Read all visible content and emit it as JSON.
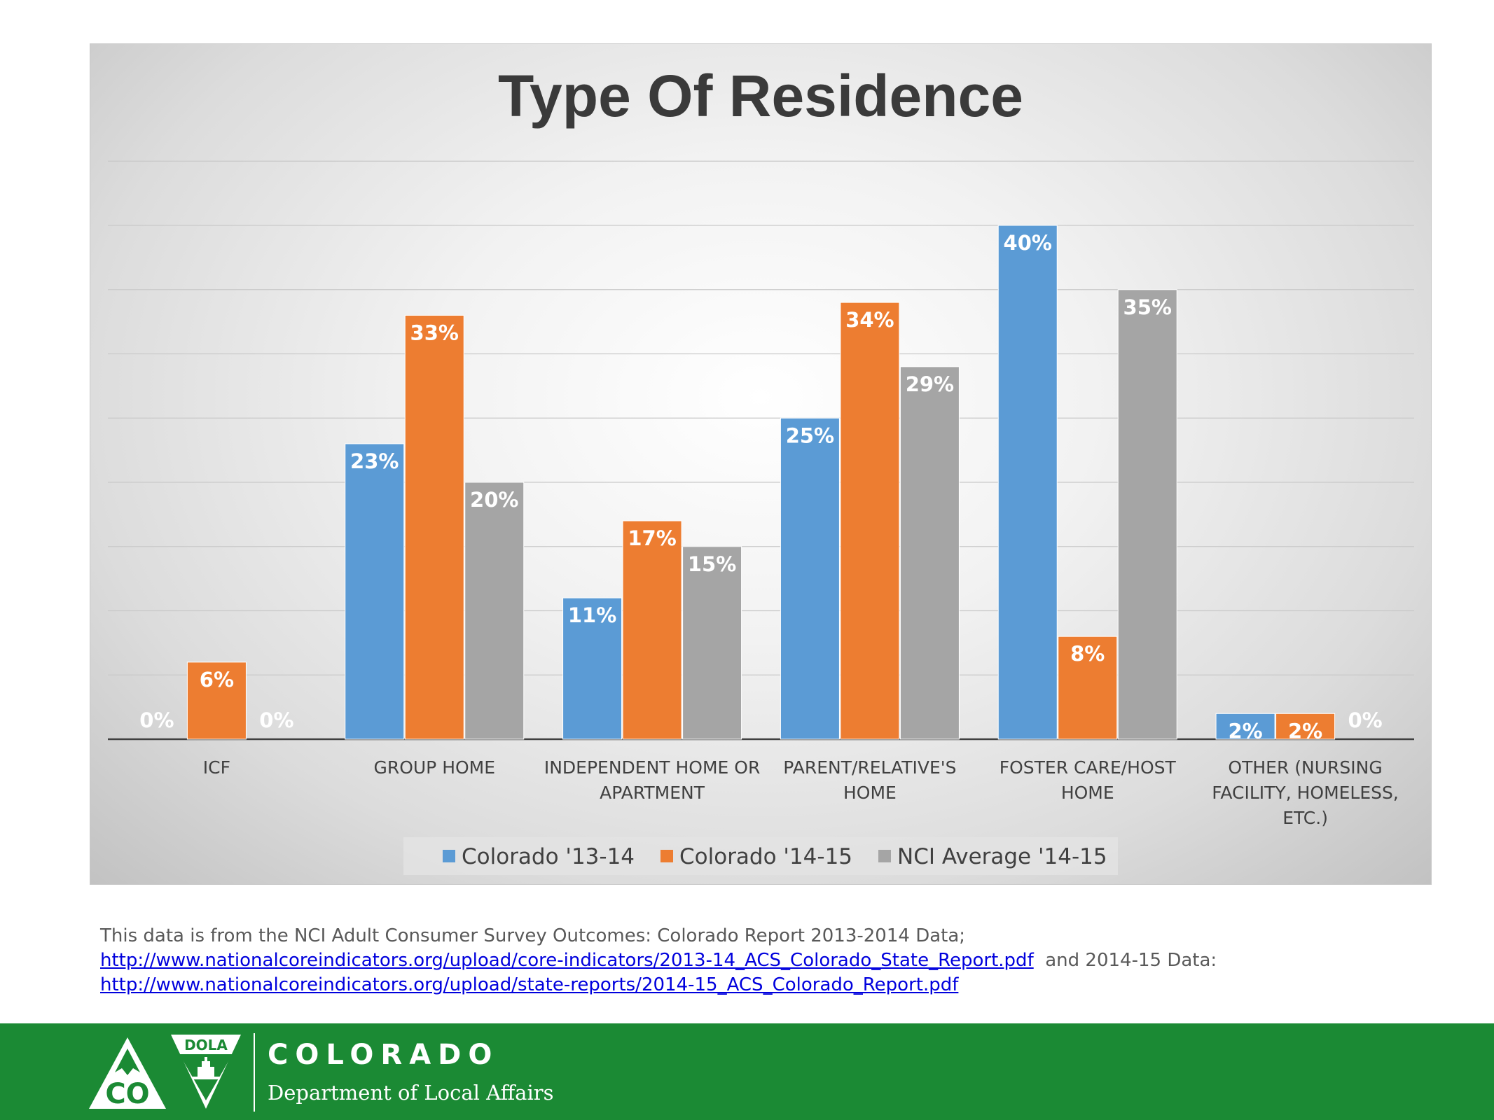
{
  "chart_data": {
    "type": "bar",
    "title": "Type Of Residence",
    "categories": [
      [
        "ICF"
      ],
      [
        "GROUP HOME"
      ],
      [
        "INDEPENDENT HOME OR",
        "APARTMENT"
      ],
      [
        "PARENT/RELATIVE'S",
        "HOME"
      ],
      [
        "FOSTER CARE/HOST",
        "HOME"
      ],
      [
        "OTHER (NURSING",
        "FACILITY, HOMELESS,",
        "ETC.)"
      ]
    ],
    "series": [
      {
        "name": "Colorado '13-14",
        "color": "#5b9bd5",
        "values": [
          0,
          23,
          11,
          25,
          40,
          2
        ],
        "labels": [
          "0%",
          "23%",
          "11%",
          "25%",
          "40%",
          "2%"
        ]
      },
      {
        "name": "Colorado '14-15",
        "color": "#ed7d31",
        "values": [
          6,
          33,
          17,
          34,
          8,
          2
        ],
        "labels": [
          "6%",
          "33%",
          "17%",
          "34%",
          "8%",
          "2%"
        ]
      },
      {
        "name": "NCI Average '14-15",
        "color": "#a5a5a5",
        "values": [
          0,
          20,
          15,
          29,
          35,
          0
        ],
        "labels": [
          "0%",
          "20%",
          "15%",
          "29%",
          "35%",
          "0%"
        ]
      }
    ],
    "ylim": [
      0,
      45
    ],
    "grid": true,
    "legend_position": "bottom"
  },
  "source_note": {
    "line1": "This data is from the NCI Adult Consumer Survey Outcomes: Colorado Report 2013-2014 Data;",
    "link1": "http://www.nationalcoreindicators.org/upload/core-indicators/2013-14_ACS_Colorado_State_Report.pdf",
    "between": "and 2014-15 Data:",
    "link2": "http://www.nationalcoreindicators.org/upload/state-reports/2014-15_ACS_Colorado_Report.pdf"
  },
  "footer": {
    "org_name": "COLORADO",
    "department": "Department of Local Affairs",
    "logo_text_co": "CO",
    "logo_text_dola": "DOLA",
    "background_color": "#1b8a34"
  }
}
